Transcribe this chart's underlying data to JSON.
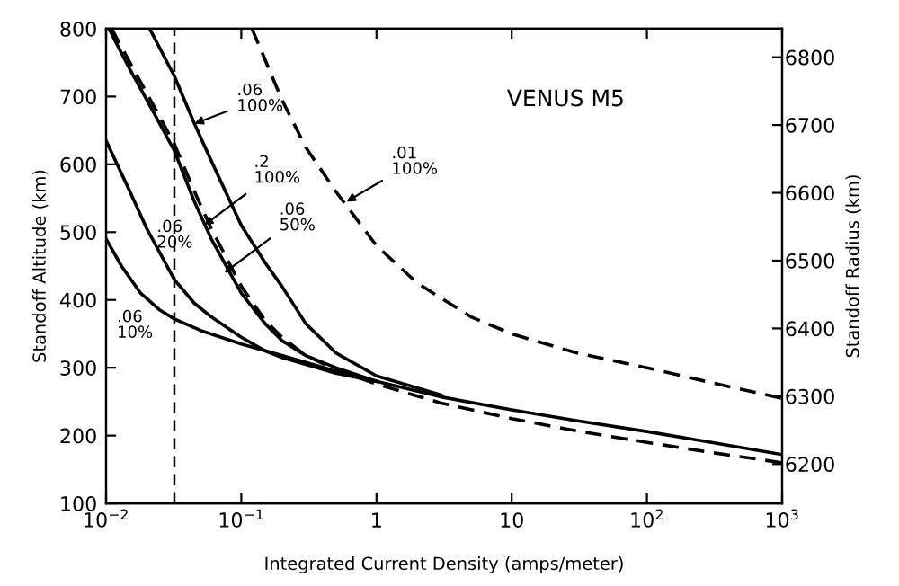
{
  "chart_data": {
    "type": "line",
    "xlabel": "Integrated Current Density (amps/meter)",
    "ylabel": "Standoff Altitude (km)",
    "y2label": "Standoff Radius (km)",
    "log": "x",
    "xlim": [
      0.01,
      1000
    ],
    "xticks": [
      {
        "value": 0.01,
        "label": "10$^{−2}$"
      },
      {
        "value": 0.1,
        "label": "10$^{−1}$"
      },
      1,
      10,
      {
        "value": 100,
        "label": "10$^{2}$"
      },
      {
        "value": 1000,
        "label": "10$^{3}$"
      }
    ],
    "ylim": [
      100,
      800
    ],
    "yticks": [
      100,
      200,
      300,
      400,
      500,
      600,
      700,
      800
    ],
    "y2lim": [
      6142,
      6842
    ],
    "y2ticks": [
      6200,
      6300,
      6400,
      6500,
      6600,
      6700,
      6800
    ],
    "grid": false,
    "series": [
      {
        "color": "#000000",
        "line_style": "solid",
        "x": [
          0.01,
          0.013,
          0.018,
          0.025,
          0.032,
          0.05,
          0.1,
          0.2,
          0.5,
          1,
          3,
          10,
          30,
          100,
          300,
          1000
        ],
        "values": [
          490,
          450,
          410,
          385,
          372,
          355,
          335,
          318,
          295,
          280,
          257,
          238,
          222,
          206,
          190,
          172
        ]
      },
      {
        "color": "#000000",
        "line_style": "solid",
        "x": [
          0.01,
          0.015,
          0.02,
          0.032,
          0.045,
          0.06,
          0.1,
          0.15,
          0.2,
          0.5,
          1
        ],
        "values": [
          635,
          560,
          505,
          430,
          395,
          375,
          345,
          325,
          315,
          292,
          280
        ]
      },
      {
        "color": "#000000",
        "line_style": "solid",
        "x": [
          0.0105,
          0.015,
          0.02,
          0.032,
          0.045,
          0.06,
          0.1,
          0.15,
          0.2,
          0.3,
          0.5,
          1
        ],
        "values": [
          800,
          740,
          695,
          620,
          545,
          490,
          410,
          365,
          340,
          318,
          300,
          280
        ]
      },
      {
        "color": "#000000",
        "line_style": "dashed",
        "x": [
          0.011,
          0.015,
          0.02,
          0.032,
          0.045,
          0.06,
          0.1,
          0.15,
          0.2,
          0.3,
          0.5,
          1,
          3,
          10,
          30,
          100,
          300,
          1000
        ],
        "values": [
          800,
          750,
          705,
          630,
          560,
          505,
          420,
          370,
          345,
          318,
          297,
          276,
          248,
          225,
          207,
          190,
          175,
          160
        ]
      },
      {
        "color": "#000000",
        "line_style": "solid",
        "x": [
          0.021,
          0.032,
          0.045,
          0.06,
          0.1,
          0.15,
          0.2,
          0.3,
          0.5,
          1,
          3
        ],
        "values": [
          800,
          730,
          660,
          605,
          510,
          455,
          420,
          365,
          322,
          288,
          260
        ]
      },
      {
        "color": "#000000",
        "line_style": "dashed",
        "x": [
          0.12,
          0.2,
          0.3,
          0.5,
          1,
          2,
          5,
          10,
          30,
          100,
          300,
          1000
        ],
        "values": [
          800,
          695,
          625,
          560,
          480,
          425,
          375,
          350,
          322,
          300,
          278,
          255
        ]
      }
    ],
    "ref_lines": [
      {
        "axis": "x",
        "value": 0.032,
        "color": "#000000",
        "line_style": "dashed"
      }
    ],
    "annotations": [
      "VENUS M5",
      ".06\n10%",
      ".06\n20%",
      {
        "text": ".2\n100%",
        "x": 0.053,
        "y": 510
      },
      {
        "text": ".06\n50%",
        "x": 0.075,
        "y": 440
      },
      {
        "text": ".06\n100%",
        "x": 0.045,
        "y": 660
      },
      {
        "text": ".01\n100%",
        "x": 0.6,
        "y": 545
      }
    ]
  }
}
